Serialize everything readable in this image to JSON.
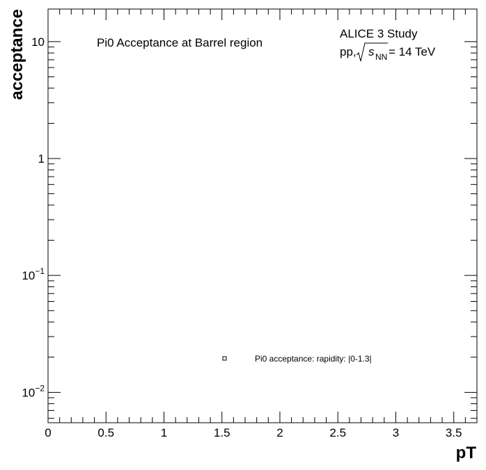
{
  "chart_data": {
    "type": "scatter",
    "title": "Pi0 Acceptance at Barrel region",
    "experiment_label": "ALICE 3 Study",
    "energy_label": {
      "prefix": "pp, ",
      "symbol": "s",
      "subscript": "NN",
      "suffix": " = 14 TeV"
    },
    "xlabel": "pT",
    "ylabel": "acceptance",
    "xlim": [
      0,
      3.7
    ],
    "ylim": [
      0.0055,
      19
    ],
    "y_scale": "log",
    "grid": false,
    "x_ticks": [
      {
        "value": 0,
        "label": "0"
      },
      {
        "value": 0.5,
        "label": "0.5"
      },
      {
        "value": 1,
        "label": "1"
      },
      {
        "value": 1.5,
        "label": "1.5"
      },
      {
        "value": 2,
        "label": "2"
      },
      {
        "value": 2.5,
        "label": "2.5"
      },
      {
        "value": 3,
        "label": "3"
      },
      {
        "value": 3.5,
        "label": "3.5"
      }
    ],
    "y_ticks": [
      {
        "value": 10,
        "base": "10",
        "exp": ""
      },
      {
        "value": 1,
        "base": "1",
        "exp": ""
      },
      {
        "value": 0.1,
        "base": "10",
        "exp": "−1"
      },
      {
        "value": 0.01,
        "base": "10",
        "exp": "−2"
      }
    ],
    "legend": {
      "placement": "bottom-center",
      "entries": [
        {
          "label": "Pi0 acceptance: rapidity: |0-1.3|",
          "marker": "open-square"
        }
      ]
    },
    "series": [
      {
        "marker": "open-square",
        "color": "#000000",
        "points": []
      }
    ]
  }
}
